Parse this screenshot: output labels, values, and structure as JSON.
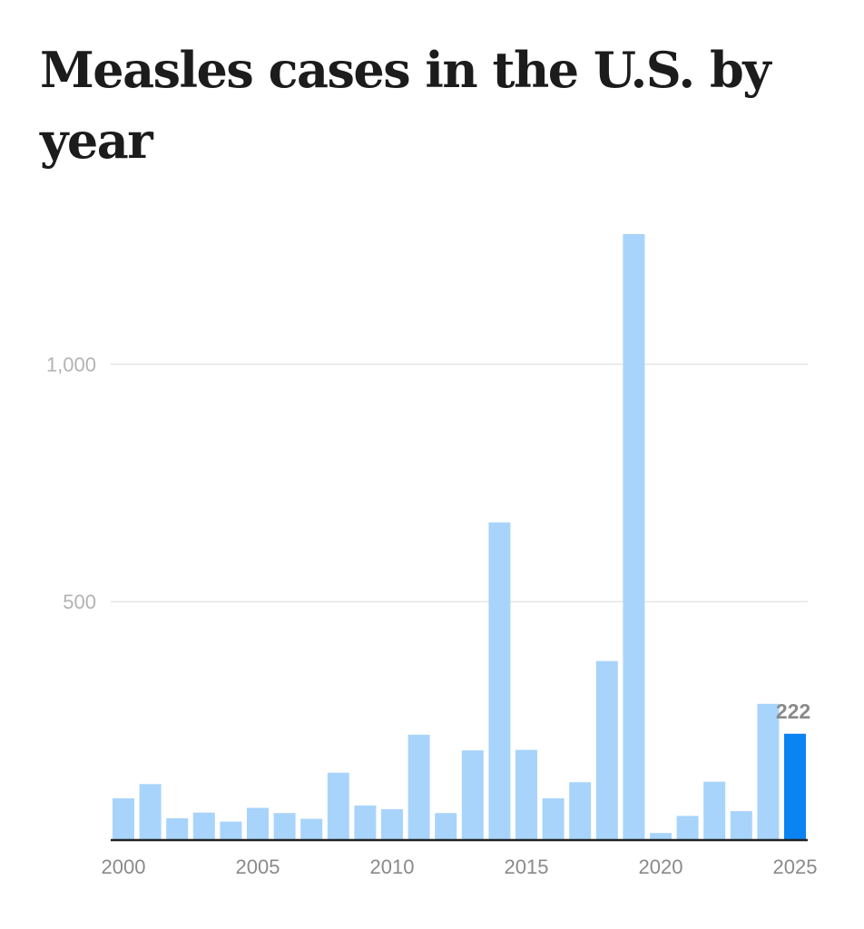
{
  "chart_data": {
    "type": "bar",
    "title": "Measles cases in the U.S. by year",
    "xlabel": "",
    "ylabel": "",
    "x": [
      2000,
      2001,
      2002,
      2003,
      2004,
      2005,
      2006,
      2007,
      2008,
      2009,
      2010,
      2011,
      2012,
      2013,
      2014,
      2015,
      2016,
      2017,
      2018,
      2019,
      2020,
      2021,
      2022,
      2023,
      2024,
      2025
    ],
    "values": [
      86,
      116,
      44,
      56,
      37,
      66,
      55,
      43,
      140,
      71,
      63,
      220,
      55,
      187,
      667,
      188,
      86,
      120,
      375,
      1274,
      13,
      49,
      121,
      59,
      285,
      222
    ],
    "ylim": [
      0,
      1274
    ],
    "yticks": [
      {
        "value": 500,
        "label": "500"
      },
      {
        "value": 1000,
        "label": "1,000"
      }
    ],
    "xticks": [
      {
        "value": 2000,
        "label": "2000"
      },
      {
        "value": 2005,
        "label": "2005"
      },
      {
        "value": 2010,
        "label": "2010"
      },
      {
        "value": 2015,
        "label": "2015"
      },
      {
        "value": 2020,
        "label": "2020"
      },
      {
        "value": 2025,
        "label": "2025"
      }
    ],
    "highlight": {
      "x": 2025,
      "label": "222"
    },
    "grid": true,
    "legend": "none",
    "colors": {
      "bar": "#a8d4fb",
      "highlight": "#0a84f2",
      "grid": "#e6e6e6",
      "axis": "#222222"
    }
  }
}
